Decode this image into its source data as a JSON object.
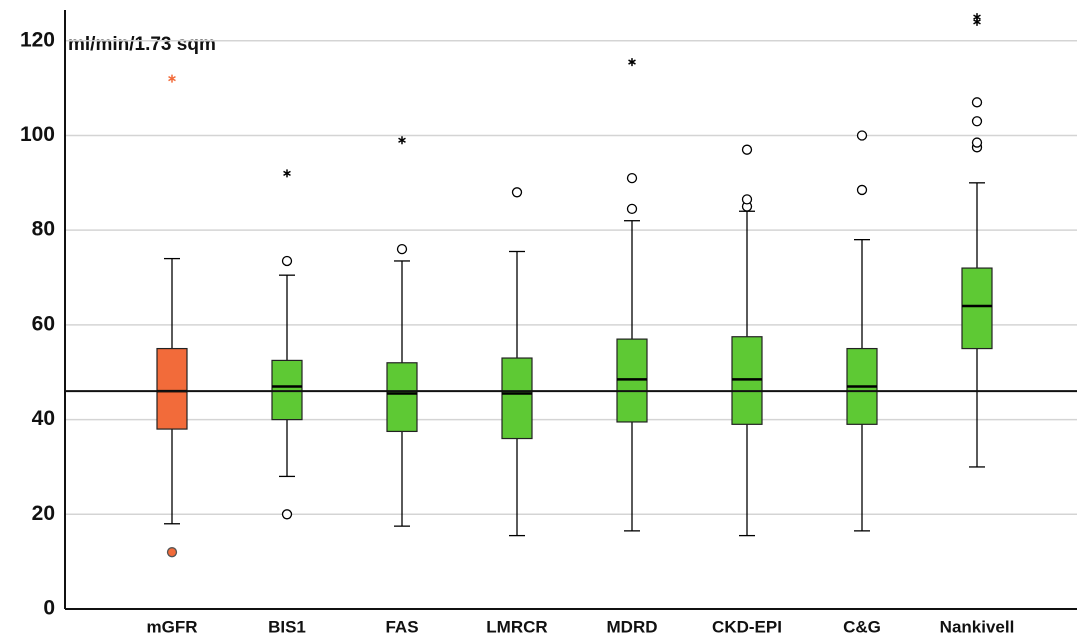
{
  "chart_data": {
    "type": "boxplot",
    "annotation": "ml/min/1.73 sqm",
    "categories": [
      "mGFR",
      "BIS1",
      "FAS",
      "LMRCR",
      "MDRD",
      "CKD-EPI",
      "C&G",
      "Nankivell"
    ],
    "boxes": [
      {
        "low": 18,
        "q1": 38,
        "median": 46,
        "q3": 55,
        "high": 74,
        "outliers": [
          12
        ],
        "extremes": [
          112
        ],
        "color": "#f26b3a",
        "outlier_color": "#f26b3a",
        "outlier_filled": true
      },
      {
        "low": 28,
        "q1": 40,
        "median": 47,
        "q3": 52.5,
        "high": 70.5,
        "outliers": [
          73.5,
          20
        ],
        "extremes": [
          92
        ],
        "color": "#5ec934",
        "outlier_color": "#000000",
        "outlier_filled": false
      },
      {
        "low": 17.5,
        "q1": 37.5,
        "median": 45.5,
        "q3": 52,
        "high": 73.5,
        "outliers": [
          76
        ],
        "extremes": [
          99
        ],
        "color": "#5ec934",
        "outlier_color": "#000000",
        "outlier_filled": false
      },
      {
        "low": 15.5,
        "q1": 36,
        "median": 45.5,
        "q3": 53,
        "high": 75.5,
        "outliers": [
          88
        ],
        "extremes": [],
        "color": "#5ec934",
        "outlier_color": "#000000",
        "outlier_filled": false
      },
      {
        "low": 16.5,
        "q1": 39.5,
        "median": 48.5,
        "q3": 57,
        "high": 82,
        "outliers": [
          84.5,
          91
        ],
        "extremes": [
          115.5
        ],
        "color": "#5ec934",
        "outlier_color": "#000000",
        "outlier_filled": false
      },
      {
        "low": 15.5,
        "q1": 39,
        "median": 48.5,
        "q3": 57.5,
        "high": 84,
        "outliers": [
          85,
          86.5,
          97
        ],
        "extremes": [],
        "color": "#5ec934",
        "outlier_color": "#000000",
        "outlier_filled": false
      },
      {
        "low": 16.5,
        "q1": 39,
        "median": 47,
        "q3": 55,
        "high": 78,
        "outliers": [
          88.5,
          100
        ],
        "extremes": [],
        "color": "#5ec934",
        "outlier_color": "#000000",
        "outlier_filled": false
      },
      {
        "low": 30,
        "q1": 55,
        "median": 64,
        "q3": 72,
        "high": 90,
        "outliers": [
          97.5,
          98.5,
          103,
          107
        ],
        "extremes": [
          124,
          125
        ],
        "color": "#5ec934",
        "outlier_color": "#000000",
        "outlier_filled": false
      }
    ],
    "reference_line": 46,
    "ylim": [
      0,
      126.5
    ],
    "yticks": [
      0,
      20,
      40,
      60,
      80,
      100,
      120
    ],
    "grid": true
  }
}
